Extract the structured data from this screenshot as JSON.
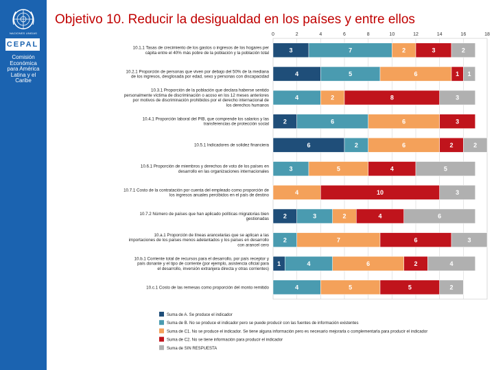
{
  "header": {
    "title": "Objetivo 10. Reducir la desigualdad en los países y entre ellos"
  },
  "sidebar": {
    "un_caption": "NACIONES UNIDAS",
    "logo_text": "CEPAL",
    "org_name": [
      "Comisión",
      "Económica",
      "para América",
      "Latina y el",
      "Caribe"
    ]
  },
  "colors": {
    "A": "#1f4e79",
    "B": "#4a9bb0",
    "C1": "#f4a15a",
    "C2": "#c0141c",
    "SR": "#b0b0b0",
    "sidebar": "#1b63b0",
    "title": "#c00000"
  },
  "chart_data": {
    "type": "bar",
    "orientation": "horizontal",
    "stacked": true,
    "xlim": [
      0,
      18
    ],
    "xticks": [
      0,
      2,
      4,
      6,
      8,
      10,
      12,
      14,
      16,
      18
    ],
    "grid": true,
    "legend_position": "bottom",
    "categories": [
      "10.1.1 Tasas de crecimiento de los gastos o ingresos de los hogares per cápita entre el 40% más pobre de la población y la población total",
      "10.2.1 Proporción de personas que viven por debajo del 50% de la mediana de los ingresos, desglosada por edad, sexo y personas con discapacidad",
      "10.3.1 Proporción de la población que declara haberse sentido personalmente víctima de discriminación o acoso en los 12 meses anteriores por motivos de discriminación prohibidos por el derecho internacional de los derechos humanos",
      "10.4.1 Proporción laboral del PIB, que comprende los salarios y las transferencias de protección social",
      "10.5.1 Indicadores de solidez financiera",
      "10.6.1 Proporción de miembros y derechos de voto de los países en desarrollo en las organizaciones internacionales",
      "10.7.1 Costo de la contratación por cuenta del empleado como proporción de los ingresos anuales percibidos en el país de destino",
      "10.7.2 Número de países que han aplicado políticas migratorias bien gestionadas",
      "10.a.1 Proporción de líneas arancelarias que se aplican a las importaciones de los países menos adelantados y los países en desarrollo con arancel cero",
      "10.b.1 Corriente total de recursos para el desarrollo, por país receptor y país donante y el tipo de corriente (por ejemplo, asistencia oficial para el desarrollo, inversión extranjera directa y otras corrientes)",
      "10.c.1 Costo de las remesas como proporción del monto remitido"
    ],
    "series": [
      {
        "name": "Suma de A. Se produce el indicador",
        "key": "A",
        "values": [
          3,
          4,
          0,
          2,
          6,
          0,
          0,
          2,
          0,
          1,
          0
        ]
      },
      {
        "name": "Suma de B. No se produce el indicador pero se puede producir con las fuentes de información existentes",
        "key": "B",
        "values": [
          7,
          5,
          4,
          6,
          2,
          3,
          0,
          3,
          2,
          4,
          4
        ]
      },
      {
        "name": "Suma de C1. No se produce el indicador. Se tiene alguna información pero es necesario mejorarla o complementarla para producir el indicador",
        "key": "C1",
        "values": [
          2,
          6,
          2,
          6,
          6,
          5,
          4,
          2,
          7,
          6,
          5
        ]
      },
      {
        "name": "Suma de C2. No se tiene información para producir el indicador",
        "key": "C2",
        "values": [
          3,
          1,
          8,
          3,
          2,
          4,
          10,
          4,
          6,
          2,
          5
        ]
      },
      {
        "name": "Suma de SIN RESPUESTA",
        "key": "SR",
        "values": [
          2,
          1,
          3,
          0,
          2,
          5,
          3,
          6,
          3,
          4,
          2
        ]
      }
    ]
  }
}
